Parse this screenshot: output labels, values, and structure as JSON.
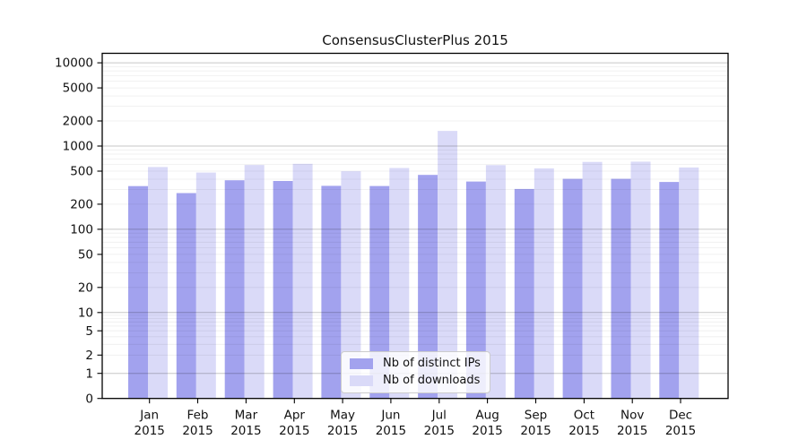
{
  "title": "ConsensusClusterPlus 2015",
  "legend": {
    "items": [
      {
        "label": "Nb of distinct IPs",
        "color": "#a2a2ee"
      },
      {
        "label": "Nb of downloads",
        "color": "#dadaf8"
      }
    ],
    "position": "lower center"
  },
  "axes": {
    "x_sublabel": "2015",
    "ytick_labels": [
      "0",
      "1",
      "2",
      "5",
      "10",
      "20",
      "50",
      "100",
      "200",
      "500",
      "1000",
      "2000",
      "5000",
      "10000"
    ]
  },
  "chart_data": {
    "type": "bar",
    "title": "ConsensusClusterPlus 2015",
    "categories": [
      "Jan",
      "Feb",
      "Mar",
      "Apr",
      "May",
      "Jun",
      "Jul",
      "Aug",
      "Sep",
      "Oct",
      "Nov",
      "Dec"
    ],
    "x_sublabel": "2015",
    "series": [
      {
        "name": "Nb of distinct IPs",
        "color": "#a2a2ee",
        "values": [
          330,
          272,
          388,
          380,
          333,
          331,
          450,
          375,
          305,
          404,
          404,
          370
        ]
      },
      {
        "name": "Nb of downloads",
        "color": "#dadaf8",
        "values": [
          560,
          480,
          593,
          612,
          498,
          545,
          1520,
          590,
          540,
          645,
          650,
          553
        ]
      }
    ],
    "yscale": "symlog",
    "yticks": [
      0,
      1,
      2,
      5,
      10,
      20,
      50,
      100,
      200,
      500,
      1000,
      2000,
      5000,
      10000
    ],
    "ylim": [
      0,
      13000
    ],
    "grid": {
      "major": "powers of 10, gray",
      "minor": "2-9 multiples, faint"
    },
    "legend_position": "lower center",
    "colors": {
      "bar_ips": "#a2a2ee",
      "bar_downloads": "#dadaf8",
      "major_grid": "rgba(0,0,0,0.22)",
      "minor_grid": "rgba(0,0,0,0.07)",
      "spine": "#000000"
    }
  }
}
